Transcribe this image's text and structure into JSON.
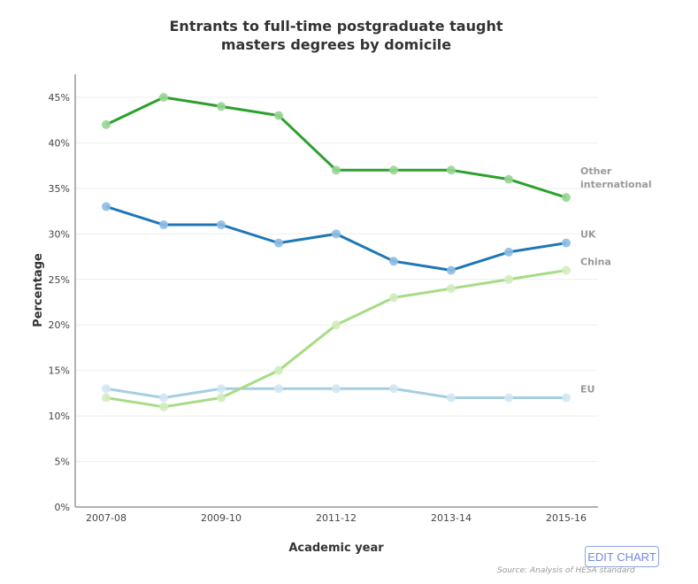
{
  "chart_data": {
    "type": "line",
    "title": [
      "Entrants to full-time postgraduate taught",
      "masters degrees by domicile"
    ],
    "xlabel": "Academic year",
    "ylabel": "Percentage",
    "categories": [
      "2007-08",
      "2008-09",
      "2009-10",
      "2010-11",
      "2011-12",
      "2012-13",
      "2013-14",
      "2014-15",
      "2015-16"
    ],
    "x_tick_labels": [
      "2007-08",
      "2009-10",
      "2011-12",
      "2013-14",
      "2015-16"
    ],
    "y_ticks": [
      0,
      5,
      10,
      15,
      20,
      25,
      30,
      35,
      40,
      45
    ],
    "y_tick_suffix": "%",
    "ylim": [
      0,
      45
    ],
    "grid": true,
    "series": [
      {
        "name": "Other international",
        "label_lines": [
          "Other",
          "international"
        ],
        "color": "#2ca02c",
        "marker_color": "#98d594",
        "values": [
          42,
          45,
          44,
          43,
          37,
          37,
          37,
          36,
          34
        ]
      },
      {
        "name": "UK",
        "label_lines": [
          "UK"
        ],
        "color": "#1f77b4",
        "marker_color": "#8dbde3",
        "values": [
          33,
          31,
          31,
          29,
          30,
          27,
          26,
          28,
          29
        ]
      },
      {
        "name": "China",
        "label_lines": [
          "China"
        ],
        "color": "#a6dc84",
        "marker_color": "#d3ecbf",
        "values": [
          12,
          11,
          12,
          15,
          20,
          23,
          24,
          25,
          26
        ]
      },
      {
        "name": "EU",
        "label_lines": [
          "EU"
        ],
        "color": "#a6cee3",
        "marker_color": "#d3e7f2",
        "values": [
          13,
          12,
          13,
          13,
          13,
          13,
          12,
          12,
          12
        ]
      }
    ]
  },
  "buttons": {
    "edit_chart": "EDIT CHART"
  },
  "footer": {
    "source": "Source: Analysis of HESA standard"
  }
}
